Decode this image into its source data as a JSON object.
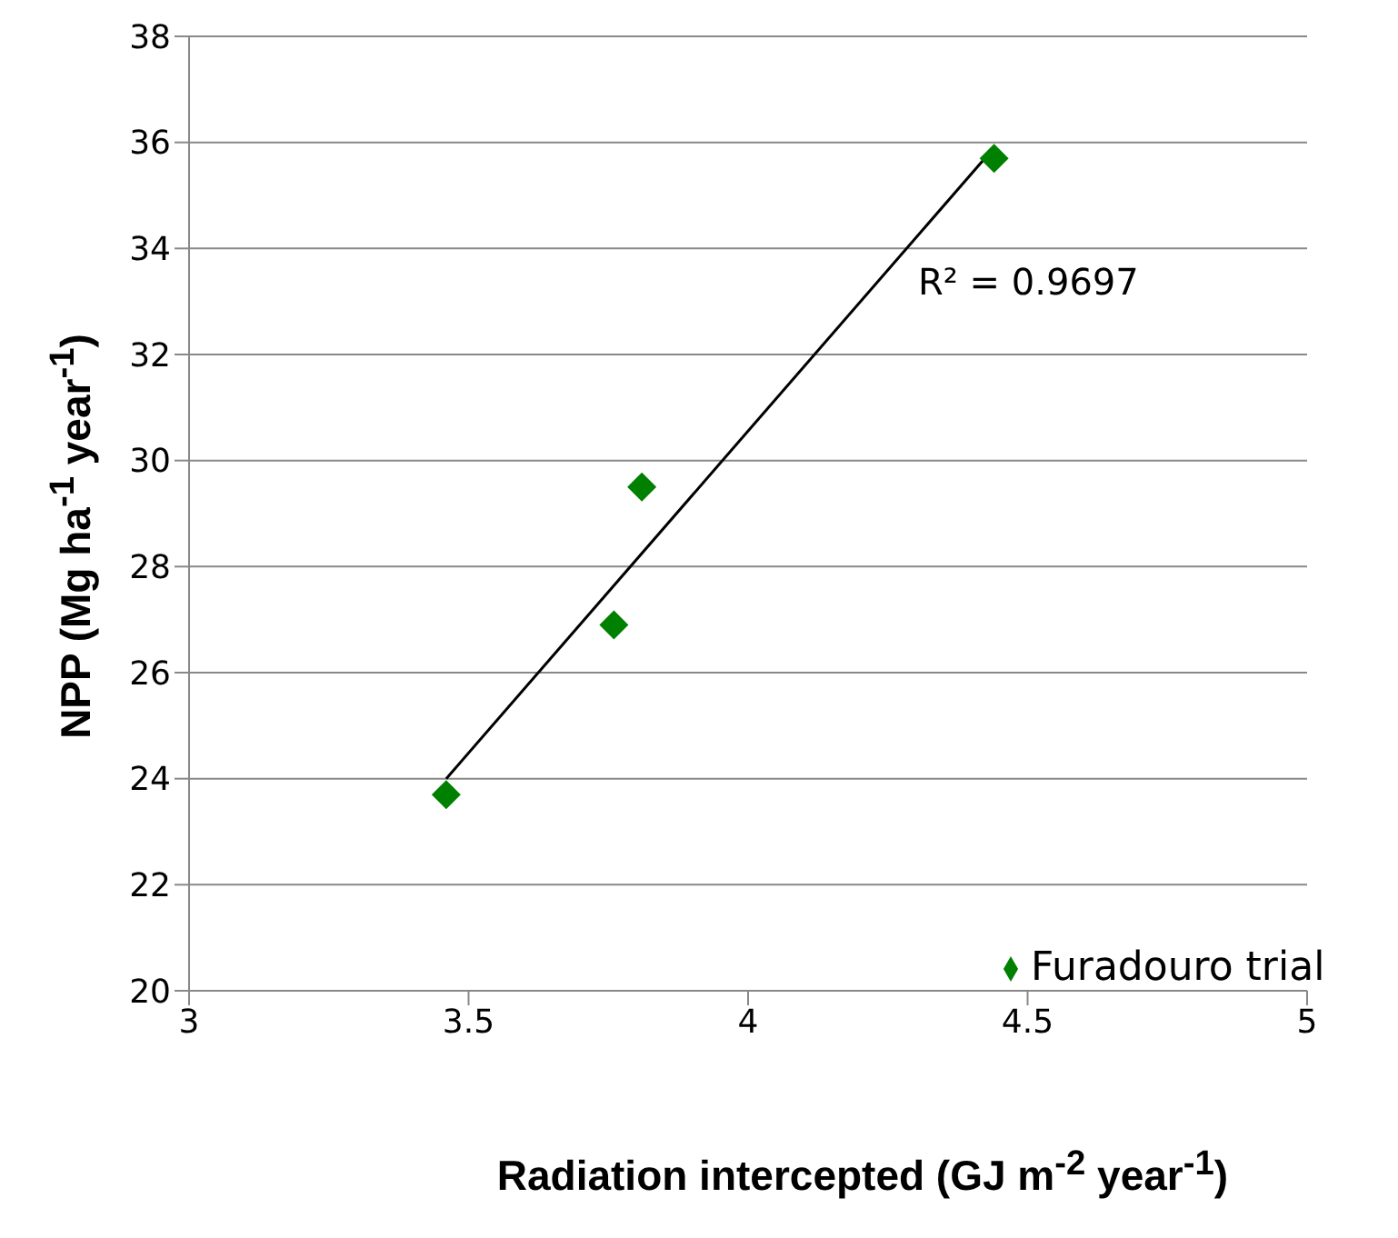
{
  "chart_data": {
    "type": "scatter",
    "xlabel": "Radiation intercepted (GJ m$^{-2}$ year$^{-1}$)",
    "ylabel": "NPP (Mg ha$^{-1}$ year$^{-1}$)",
    "annotations": [
      "R² = 0.9697"
    ],
    "series": [
      {
        "name": "Furadouro trial",
        "marker": "diamond",
        "color": "#008000",
        "x": [
          3.46,
          3.76,
          3.81,
          4.44
        ],
        "values": [
          23.7,
          26.9,
          29.5,
          35.7
        ]
      },
      {
        "type": "line",
        "marker": "none",
        "color": "#000000",
        "x": [
          3.46,
          4.44
        ],
        "values": [
          24.0,
          35.9
        ]
      }
    ],
    "xlim": [
      3,
      5
    ],
    "xticks": [
      3,
      3.5,
      4,
      4.5,
      5
    ],
    "ylim": [
      20,
      38
    ],
    "yticks": [
      20,
      22,
      24,
      26,
      28,
      30,
      32,
      34,
      36,
      38
    ],
    "grid": "y",
    "legend": "bottom right"
  }
}
